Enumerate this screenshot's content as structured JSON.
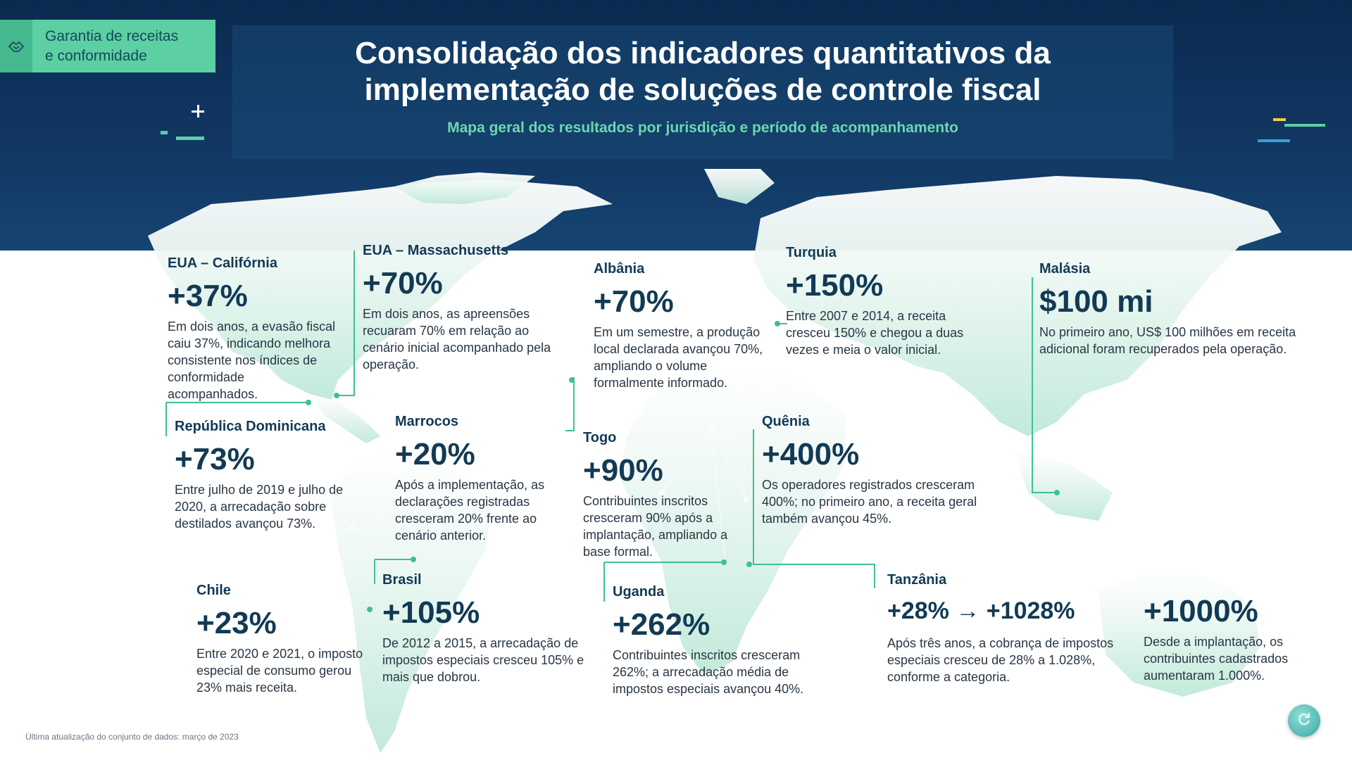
{
  "badge": {
    "line1": "Garantia de receitas",
    "line2": "e conformidade",
    "icon": "handshake-icon"
  },
  "header": {
    "title_line1": "Consolidação dos indicadores quantitativos da",
    "title_line2": "implementação de soluções de controle fiscal",
    "subtitle": "Mapa geral dos resultados por jurisdição e período de acompanhamento"
  },
  "regions": [
    {
      "name": "EUA – Califórnia",
      "value": "+37%",
      "desc": "Em dois anos, a evasão fiscal caiu 37%, indicando melhora consistente nos índices de conformidade acompanhados."
    },
    {
      "name": "EUA – Massachusetts",
      "value": "+70%",
      "desc": "Em dois anos, as apreensões recuaram 70% em relação ao cenário inicial acompanhado pela operação."
    },
    {
      "name": "Albânia",
      "value": "+70%",
      "desc": "Em um semestre, a produção local declarada avançou 70%, ampliando o volume formalmente informado."
    },
    {
      "name": "Turquia",
      "value": "+150%",
      "desc": "Entre 2007 e 2014, a receita cresceu 150% e chegou a duas vezes e meia o valor inicial."
    },
    {
      "name": "Malásia",
      "value": "$100 mi",
      "desc": "No primeiro ano, US$ 100 milhões em receita adicional foram recuperados pela operação."
    },
    {
      "name": "República Dominicana",
      "value": "+73%",
      "desc": "Entre julho de 2019 e julho de 2020, a arrecadação sobre destilados avançou 73%."
    },
    {
      "name": "Marrocos",
      "value": "+20%",
      "desc": "Após a implementação, as declarações registradas cresceram 20% frente ao cenário anterior."
    },
    {
      "name": "Togo",
      "value": "+90%",
      "desc": "Contribuintes inscritos cresceram 90% após a implantação, ampliando a base formal."
    },
    {
      "name": "Quênia",
      "value": "+400%",
      "desc": "Os operadores registrados cresceram 400%; no primeiro ano, a receita geral também avançou 45%."
    },
    {
      "name": "Chile",
      "value": "+23%",
      "desc": "Entre 2020 e 2021, o imposto especial de consumo gerou 23% mais receita."
    },
    {
      "name": "Brasil",
      "value": "+105%",
      "desc": "De 2012 a 2015, a arrecadação de impostos especiais cresceu 105% e mais que dobrou."
    },
    {
      "name": "Uganda",
      "value": "+262%",
      "desc": "Contribuintes inscritos cresceram 262%; a arrecadação média de impostos especiais avançou 40%."
    },
    {
      "name": "Tanzânia",
      "value": "+28% → +1028%",
      "desc": "Após três anos, a cobrança de impostos especiais cresceu de 28% a 1.028%, conforme a categoria."
    },
    {
      "name": "",
      "value": "+1000%",
      "desc": "Desde a implantação, os contribuintes cadastrados aumentaram 1.000%."
    }
  ],
  "footer": "Última atualização do conjunto de dados: março de 2023",
  "colors": {
    "header": "#0b2a50",
    "accent": "#5ccfa3",
    "map": "#d6f2e8",
    "text": "#123a55"
  }
}
